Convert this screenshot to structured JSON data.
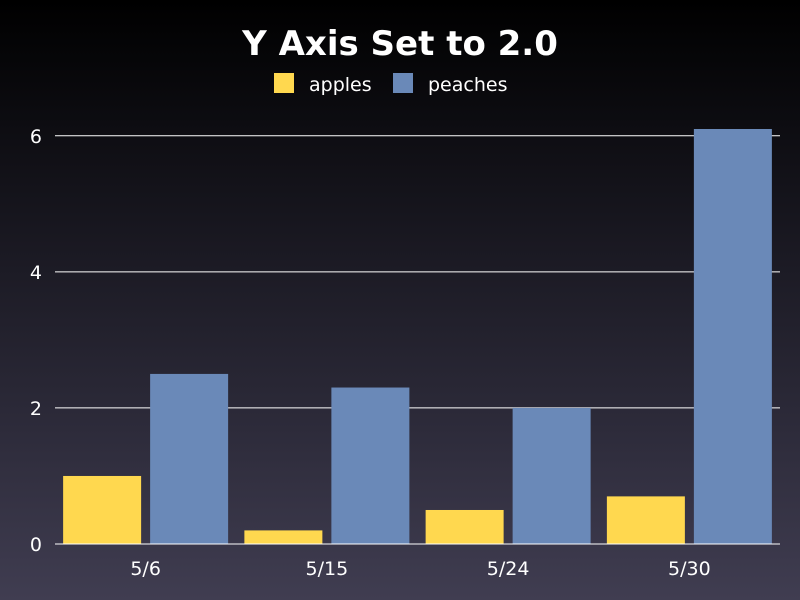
{
  "chart_data": {
    "type": "bar",
    "title": "Y Axis Set to 2.0",
    "xlabel": "",
    "ylabel": "",
    "categories": [
      "5/6",
      "5/15",
      "5/24",
      "5/30"
    ],
    "series": [
      {
        "name": "apples",
        "color": "#ffd84f",
        "values": [
          1.0,
          0.2,
          0.5,
          0.7
        ]
      },
      {
        "name": "peaches",
        "color": "#6a89b8",
        "values": [
          2.5,
          2.3,
          2.0,
          6.1
        ]
      }
    ],
    "ylim": [
      0,
      6.1
    ],
    "yticks": [
      0,
      2,
      4,
      6
    ],
    "grid": true,
    "legend_position": "top-center"
  },
  "colors": {
    "text": "#ffffff",
    "gridline": "#ffffff"
  }
}
